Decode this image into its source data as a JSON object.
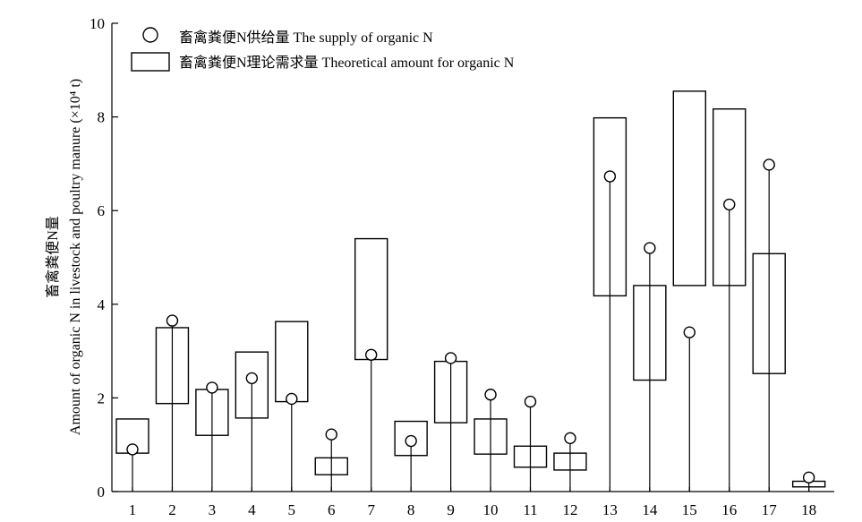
{
  "chart_data": {
    "type": "range-box-and-point",
    "categories": [
      "1",
      "2",
      "3",
      "4",
      "5",
      "6",
      "7",
      "8",
      "9",
      "10",
      "11",
      "12",
      "13",
      "14",
      "15",
      "16",
      "17",
      "18"
    ],
    "ylim": [
      0,
      10
    ],
    "yticks": [
      0,
      2,
      4,
      6,
      8,
      10
    ],
    "ylabel_line1": "畜禽粪便N量",
    "ylabel_line2": "Amount of organic N in livestock and poultry manure (×10⁴ t)",
    "xlabel": "",
    "grid": false,
    "legend_position": "top-left",
    "series": [
      {
        "name": "畜禽粪便N供给量 The supply of organic N",
        "marker": "circle",
        "values": [
          0.9,
          3.65,
          2.22,
          2.42,
          1.98,
          1.22,
          2.92,
          1.08,
          2.85,
          2.07,
          1.92,
          1.14,
          6.73,
          5.2,
          3.4,
          6.13,
          6.98,
          0.3
        ]
      },
      {
        "name": "畜禽粪便N理论需求量 Theoretical amount for organic N",
        "marker": "box",
        "ranges": [
          [
            0.82,
            1.55
          ],
          [
            1.88,
            3.5
          ],
          [
            1.2,
            2.18
          ],
          [
            1.57,
            2.98
          ],
          [
            1.92,
            3.63
          ],
          [
            0.36,
            0.72
          ],
          [
            2.82,
            5.4
          ],
          [
            0.77,
            1.5
          ],
          [
            1.47,
            2.78
          ],
          [
            0.8,
            1.55
          ],
          [
            0.52,
            0.97
          ],
          [
            0.46,
            0.82
          ],
          [
            4.18,
            7.98
          ],
          [
            2.38,
            4.4
          ],
          [
            4.4,
            8.55
          ],
          [
            4.4,
            8.17
          ],
          [
            2.52,
            5.08
          ],
          [
            0.1,
            0.22
          ]
        ]
      }
    ]
  }
}
